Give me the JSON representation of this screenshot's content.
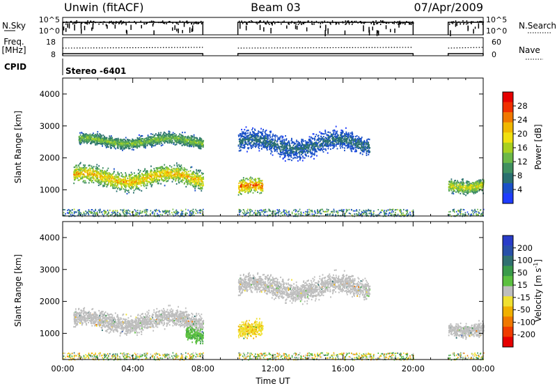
{
  "header": {
    "station": "Unwin (fitACF)",
    "beam": "Beam 03",
    "date": "07/Apr/2009"
  },
  "cpid": {
    "label": "CPID",
    "value": "Stereo -6401"
  },
  "colors": {
    "axis": "#000000",
    "background": "#ffffff",
    "ground_scatter": "#bebebe"
  },
  "chart_data": [
    {
      "type": "line",
      "name": "sky-noise-panel",
      "ylabel": "N.Sky",
      "right_label": "N.Search",
      "ytick_labels": [
        "10^5",
        "10^0"
      ],
      "right_tick_labels": [
        "10^5",
        "10^0"
      ],
      "yscale": "log",
      "ylim": [
        1,
        100000
      ],
      "x": [
        0,
        8
      ],
      "data_segments_hours": [
        [
          0,
          8
        ],
        [
          10,
          20
        ],
        [
          22,
          24
        ]
      ]
    },
    {
      "type": "line",
      "name": "frequency-panel",
      "ylabel_lines": [
        "Freq.",
        "[MHz]"
      ],
      "right_label": "Nave",
      "ytick_labels": [
        "18",
        "8"
      ],
      "right_tick_labels": [
        "60",
        "0"
      ],
      "ylim": [
        8,
        18
      ],
      "right_ylim": [
        0,
        60
      ],
      "data_segments_hours": [
        [
          0,
          8
        ],
        [
          10,
          20
        ],
        [
          22,
          24
        ]
      ]
    },
    {
      "type": "heatmap",
      "name": "power-panel",
      "xlabel": "Time UT",
      "ylabel": "Slant Range [km]",
      "xlim": [
        0,
        24
      ],
      "ylim": [
        180,
        4500
      ],
      "yticks": [
        1000,
        2000,
        3000,
        4000
      ],
      "xtick_labels": [
        "00:00",
        "04:00",
        "08:00",
        "12:00",
        "16:00",
        "20:00",
        "00:00"
      ],
      "colorbar": {
        "label": "Power [dB]",
        "tick_labels": [
          "28",
          "24",
          "20",
          "16",
          "12",
          "8",
          "4"
        ],
        "range": [
          0,
          32
        ],
        "colors": [
          "#1e3cff",
          "#1a50c8",
          "#2a7070",
          "#409060",
          "#6cb848",
          "#a8d020",
          "#f0e010",
          "#f0b800",
          "#f07800",
          "#f03000",
          "#e60000"
        ]
      },
      "scatter_bands": [
        {
          "t": [
            0.6,
            8.0
          ],
          "range_km": [
            1000,
            1800
          ],
          "peak_db": 24
        },
        {
          "t": [
            0.9,
            8.0
          ],
          "range_km": [
            2300,
            2800
          ],
          "peak_db": 16
        },
        {
          "t": [
            10.0,
            11.4
          ],
          "range_km": [
            700,
            1400
          ],
          "peak_db": 28
        },
        {
          "t": [
            10.0,
            17.5
          ],
          "range_km": [
            2000,
            2900
          ],
          "peak_db": 8
        },
        {
          "t": [
            22.0,
            24.0
          ],
          "range_km": [
            900,
            1500
          ],
          "peak_db": 20
        }
      ]
    },
    {
      "type": "heatmap",
      "name": "velocity-panel",
      "xlabel": "Time UT",
      "ylabel": "Slant Range [km]",
      "xlim": [
        0,
        24
      ],
      "ylim": [
        180,
        4500
      ],
      "yticks": [
        1000,
        2000,
        3000,
        4000
      ],
      "xtick_labels": [
        "00:00",
        "04:00",
        "08:00",
        "12:00",
        "16:00",
        "20:00",
        "00:00"
      ],
      "colorbar": {
        "label": "Velocity [m s",
        "label_superscript": "-1",
        "label_suffix": "]",
        "tick_labels": [
          "200",
          "100",
          "50",
          "15",
          "-15",
          "-50",
          "-100",
          "-200"
        ],
        "range": [
          -250,
          250
        ],
        "colors": [
          "#283cc8",
          "#2850a8",
          "#307070",
          "#3a9a4a",
          "#5cc040",
          "#bebebe",
          "#f0e030",
          "#f0b000",
          "#f07800",
          "#f03c00",
          "#e60000"
        ]
      },
      "scatter_bands": [
        {
          "t": [
            0.6,
            8.0
          ],
          "range_km": [
            1000,
            1800
          ],
          "velocity": 0
        },
        {
          "t": [
            7.0,
            8.0
          ],
          "range_km": [
            700,
            1300
          ],
          "velocity": 60
        },
        {
          "t": [
            10.0,
            11.4
          ],
          "range_km": [
            700,
            1400
          ],
          "velocity": -60
        },
        {
          "t": [
            10.0,
            17.5
          ],
          "range_km": [
            2000,
            2900
          ],
          "velocity": 0
        },
        {
          "t": [
            22.0,
            24.0
          ],
          "range_km": [
            900,
            1500
          ],
          "velocity": 0
        }
      ]
    }
  ]
}
